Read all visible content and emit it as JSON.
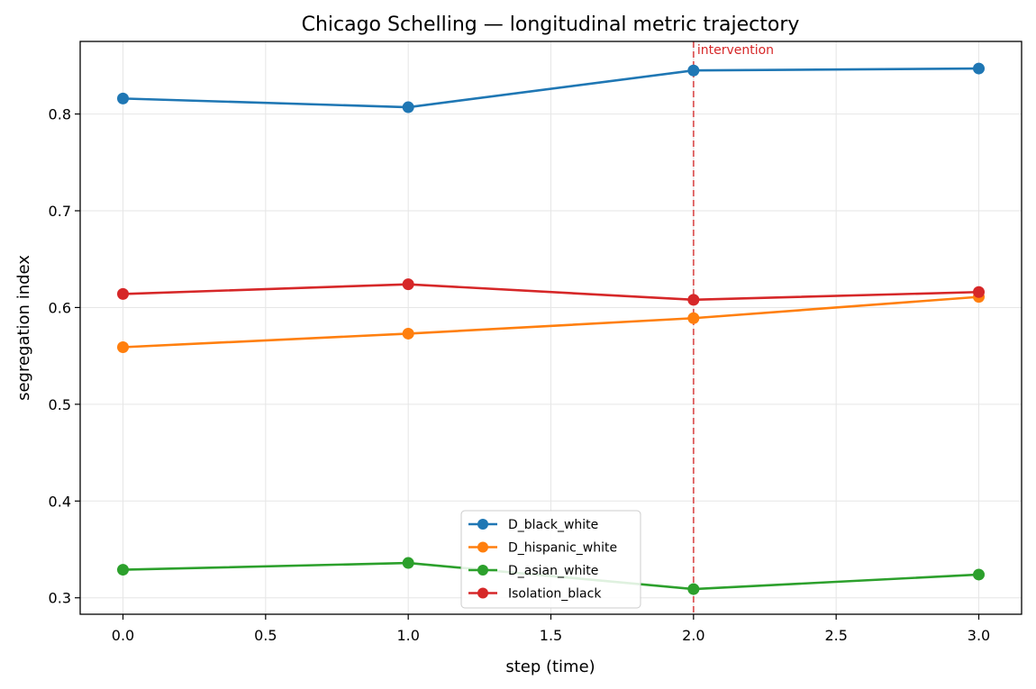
{
  "chart_data": {
    "type": "line",
    "title": "Chicago Schelling — longitudinal metric trajectory",
    "xlabel": "step (time)",
    "ylabel": "segregation index",
    "x": [
      0.0,
      1.0,
      2.0,
      3.0
    ],
    "xlim": [
      -0.15,
      3.15
    ],
    "ylim": [
      0.283,
      0.875
    ],
    "xticks": [
      0.0,
      0.5,
      1.0,
      1.5,
      2.0,
      2.5,
      3.0
    ],
    "xtick_labels": [
      "0.0",
      "0.5",
      "1.0",
      "1.5",
      "2.0",
      "2.5",
      "3.0"
    ],
    "yticks": [
      0.3,
      0.4,
      0.5,
      0.6,
      0.7,
      0.8
    ],
    "ytick_labels": [
      "0.3",
      "0.4",
      "0.5",
      "0.6",
      "0.7",
      "0.8"
    ],
    "grid": true,
    "legend_position": "lower-center",
    "series": [
      {
        "name": "D_black_white",
        "color": "#1f77b4",
        "values": [
          0.816,
          0.807,
          0.845,
          0.847
        ]
      },
      {
        "name": "D_hispanic_white",
        "color": "#ff7f0e",
        "values": [
          0.559,
          0.573,
          0.589,
          0.611
        ]
      },
      {
        "name": "D_asian_white",
        "color": "#2ca02c",
        "values": [
          0.329,
          0.336,
          0.309,
          0.324
        ]
      },
      {
        "name": "Isolation_black",
        "color": "#d62728",
        "values": [
          0.614,
          0.624,
          0.608,
          0.616
        ]
      }
    ],
    "annotations": [
      {
        "type": "vline",
        "x": 2.0,
        "label": "intervention",
        "color": "#d62728"
      }
    ]
  }
}
